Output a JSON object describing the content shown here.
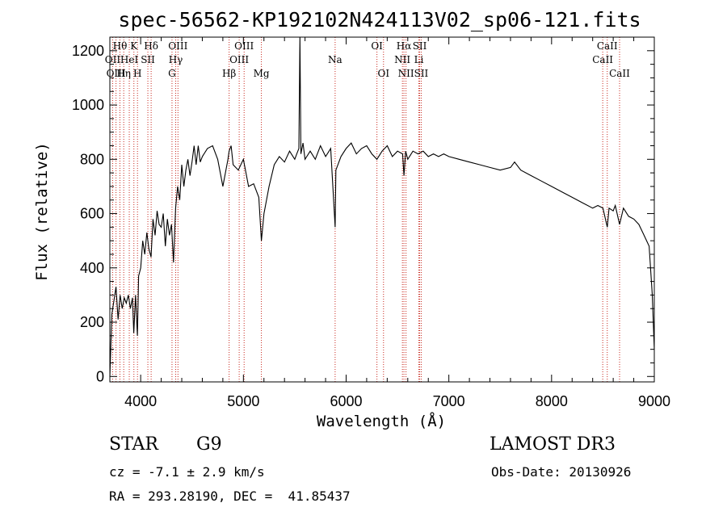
{
  "chart_data": {
    "type": "line",
    "title": "spec-56562-KP192102N424113V02_sp06-121.fits",
    "xlabel": "Wavelength (Å)",
    "ylabel": "Flux (relative)",
    "xlim": [
      3700,
      9000
    ],
    "ylim": [
      -20,
      1250
    ],
    "x_ticks": [
      4000,
      5000,
      6000,
      7000,
      8000,
      9000
    ],
    "y_ticks": [
      0,
      200,
      400,
      600,
      800,
      1000,
      1200
    ],
    "series": [
      {
        "name": "spectrum",
        "x": [
          3700,
          3720,
          3740,
          3760,
          3780,
          3800,
          3820,
          3840,
          3860,
          3880,
          3900,
          3920,
          3933,
          3950,
          3968,
          3980,
          4000,
          4020,
          4040,
          4060,
          4080,
          4101,
          4120,
          4140,
          4160,
          4180,
          4200,
          4220,
          4240,
          4260,
          4280,
          4300,
          4320,
          4340,
          4360,
          4380,
          4400,
          4420,
          4440,
          4460,
          4480,
          4500,
          4520,
          4540,
          4560,
          4580,
          4600,
          4650,
          4700,
          4750,
          4800,
          4850,
          4861,
          4880,
          4900,
          4950,
          5000,
          5050,
          5100,
          5150,
          5175,
          5200,
          5250,
          5300,
          5350,
          5400,
          5450,
          5500,
          5520,
          5540,
          5550,
          5560,
          5580,
          5600,
          5650,
          5700,
          5750,
          5800,
          5850,
          5893,
          5900,
          5950,
          6000,
          6050,
          6100,
          6150,
          6200,
          6250,
          6300,
          6350,
          6400,
          6450,
          6500,
          6550,
          6563,
          6580,
          6600,
          6650,
          6700,
          6750,
          6800,
          6850,
          6900,
          6950,
          7000,
          7100,
          7200,
          7300,
          7400,
          7500,
          7600,
          7640,
          7700,
          7800,
          7900,
          8000,
          8100,
          8200,
          8300,
          8400,
          8450,
          8500,
          8542,
          8560,
          8600,
          8620,
          8662,
          8700,
          8750,
          8800,
          8850,
          8900,
          8950,
          8980,
          9000
        ],
        "values": [
          0,
          230,
          280,
          330,
          210,
          300,
          250,
          290,
          270,
          300,
          250,
          290,
          160,
          300,
          150,
          370,
          400,
          500,
          450,
          530,
          470,
          440,
          580,
          520,
          610,
          560,
          550,
          600,
          480,
          580,
          520,
          560,
          420,
          620,
          700,
          650,
          780,
          700,
          760,
          800,
          740,
          790,
          850,
          780,
          850,
          790,
          810,
          840,
          850,
          800,
          700,
          800,
          830,
          850,
          780,
          760,
          800,
          700,
          710,
          660,
          500,
          600,
          700,
          780,
          810,
          790,
          830,
          800,
          820,
          840,
          1250,
          820,
          860,
          800,
          830,
          800,
          850,
          810,
          840,
          550,
          760,
          810,
          840,
          860,
          820,
          840,
          850,
          820,
          800,
          830,
          850,
          810,
          830,
          820,
          740,
          830,
          800,
          830,
          820,
          830,
          810,
          820,
          810,
          820,
          810,
          800,
          790,
          780,
          770,
          760,
          770,
          790,
          760,
          740,
          720,
          700,
          680,
          660,
          640,
          620,
          630,
          620,
          550,
          620,
          610,
          630,
          560,
          620,
          590,
          580,
          560,
          520,
          480,
          300,
          100
        ]
      }
    ],
    "lines": [
      {
        "label": "Hθ",
        "x": 3798,
        "row": 0
      },
      {
        "label": "OII",
        "x": 3727,
        "row": 1
      },
      {
        "label": "OIII",
        "x": 3760,
        "row": 2
      },
      {
        "label": "K",
        "x": 3934,
        "row": 0
      },
      {
        "label": "HeI",
        "x": 3889,
        "row": 1
      },
      {
        "label": "Hη",
        "x": 3835,
        "row": 2
      },
      {
        "label": "SII",
        "x": 4070,
        "row": 1
      },
      {
        "label": "H",
        "x": 3969,
        "row": 2
      },
      {
        "label": "Hδ",
        "x": 4102,
        "row": 0
      },
      {
        "label": "OIII",
        "x": 4363,
        "row": 0
      },
      {
        "label": "Hγ",
        "x": 4341,
        "row": 1
      },
      {
        "label": "G",
        "x": 4305,
        "row": 2
      },
      {
        "label": "Hβ",
        "x": 4861,
        "row": 2
      },
      {
        "label": "OIII",
        "x": 5007,
        "row": 0
      },
      {
        "label": "OIII",
        "x": 4959,
        "row": 1
      },
      {
        "label": "Mg",
        "x": 5175,
        "row": 2
      },
      {
        "label": "Na",
        "x": 5893,
        "row": 1
      },
      {
        "label": "OI",
        "x": 6300,
        "row": 0
      },
      {
        "label": "OI",
        "x": 6364,
        "row": 2
      },
      {
        "label": "Hα",
        "x": 6563,
        "row": 0
      },
      {
        "label": "NII",
        "x": 6548,
        "row": 1
      },
      {
        "label": "NII",
        "x": 6583,
        "row": 2
      },
      {
        "label": "SII",
        "x": 6716,
        "row": 0
      },
      {
        "label": "Li",
        "x": 6708,
        "row": 1
      },
      {
        "label": "SII",
        "x": 6731,
        "row": 2
      },
      {
        "label": "CaII",
        "x": 8542,
        "row": 0
      },
      {
        "label": "CaII",
        "x": 8498,
        "row": 1
      },
      {
        "label": "CaII",
        "x": 8662,
        "row": 2
      }
    ]
  },
  "info": {
    "object_class": "STAR",
    "subclass": "G9",
    "survey": "LAMOST DR3",
    "velocity": "cz = -7.1 ± 2.9 km/s",
    "obs_date": "Obs-Date: 20130926",
    "coords": "RA = 293.28190, DEC =  41.85437"
  }
}
